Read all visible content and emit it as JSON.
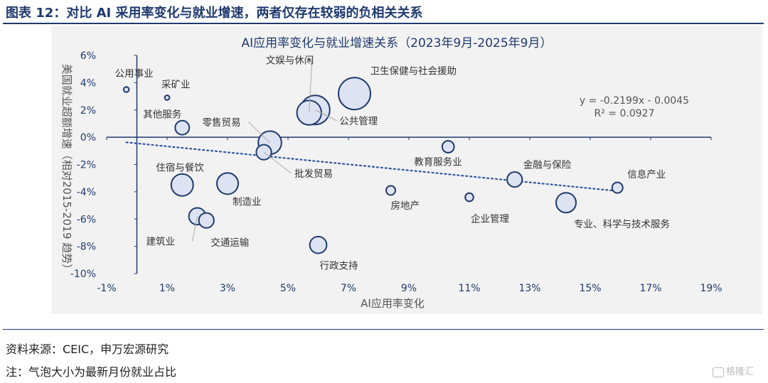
{
  "header": {
    "title": "图表 12：对比 AI 采用率变化与就业增速，两者仅存在较弱的负相关关系"
  },
  "footer": {
    "source": "资料来源：CEIC，申万宏源研究",
    "note": "注：气泡大小为最新月份就业占比",
    "watermark": "格隆汇"
  },
  "chart_data": {
    "type": "scatter",
    "title": "AI应用率变化与就业增速关系（2023年9月-2025年9月）",
    "xlabel": "AI应用率变化",
    "ylabel": "美国就业超额增速（相对2015-2019 趋势）",
    "xlim": [
      -0.01,
      0.19
    ],
    "ylim": [
      -0.1,
      0.06
    ],
    "x_ticks": [
      -0.01,
      0.01,
      0.03,
      0.05,
      0.07,
      0.09,
      0.11,
      0.13,
      0.15,
      0.17,
      0.19
    ],
    "x_tick_labels": [
      "-1%",
      "1%",
      "3%",
      "5%",
      "7%",
      "9%",
      "11%",
      "13%",
      "15%",
      "17%",
      "19%"
    ],
    "y_ticks": [
      0.06,
      0.04,
      0.02,
      0.0,
      -0.02,
      -0.04,
      -0.06,
      -0.08,
      -0.1
    ],
    "y_tick_labels": [
      "6%",
      "4%",
      "2%",
      "0%",
      "-2%",
      "-4%",
      "-6%",
      "-8%",
      "-10%"
    ],
    "grid": false,
    "bubble_color": "#dde3f2",
    "bubble_stroke": "#1f3a6e",
    "trendline": {
      "slope": -0.2199,
      "intercept": -0.0045,
      "equation": "y = -0.2199x - 0.0045",
      "r_squared": "R² = 0.0927",
      "color": "#2f55a4"
    },
    "points": [
      {
        "label": "公用事业",
        "x": -0.0035,
        "y": 0.035,
        "size": 0.5
      },
      {
        "label": "采矿业",
        "x": 0.01,
        "y": 0.029,
        "size": 0.4
      },
      {
        "label": "其他服务",
        "x": 0.015,
        "y": 0.007,
        "size": 3.5
      },
      {
        "label": "零售贸易",
        "x": 0.044,
        "y": -0.004,
        "size": 9.5
      },
      {
        "label": "文娱与休闲",
        "x": 0.057,
        "y": 0.018,
        "size": 10.5
      },
      {
        "label": "卫生保健与社会援助",
        "x": 0.072,
        "y": 0.032,
        "size": 18
      },
      {
        "label": "公共管理",
        "x": 0.059,
        "y": 0.02,
        "size": 15
      },
      {
        "label": "批发贸易",
        "x": 0.042,
        "y": -0.011,
        "size": 4
      },
      {
        "label": "教育服务业",
        "x": 0.103,
        "y": -0.007,
        "size": 2.5
      },
      {
        "label": "住宿与餐饮",
        "x": 0.015,
        "y": -0.035,
        "size": 8.5
      },
      {
        "label": "制造业",
        "x": 0.03,
        "y": -0.034,
        "size": 8
      },
      {
        "label": "房地产",
        "x": 0.084,
        "y": -0.039,
        "size": 1.5
      },
      {
        "label": "企业管理",
        "x": 0.11,
        "y": -0.044,
        "size": 1.2
      },
      {
        "label": "金融与保险",
        "x": 0.125,
        "y": -0.031,
        "size": 4
      },
      {
        "label": "信息产业",
        "x": 0.159,
        "y": -0.037,
        "size": 2
      },
      {
        "label": "专业、科学与技术服务",
        "x": 0.142,
        "y": -0.048,
        "size": 7
      },
      {
        "label": "建筑业",
        "x": 0.02,
        "y": -0.058,
        "size": 5
      },
      {
        "label": "交通运输",
        "x": 0.023,
        "y": -0.061,
        "size": 4
      },
      {
        "label": "行政支持",
        "x": 0.06,
        "y": -0.079,
        "size": 5
      }
    ]
  }
}
